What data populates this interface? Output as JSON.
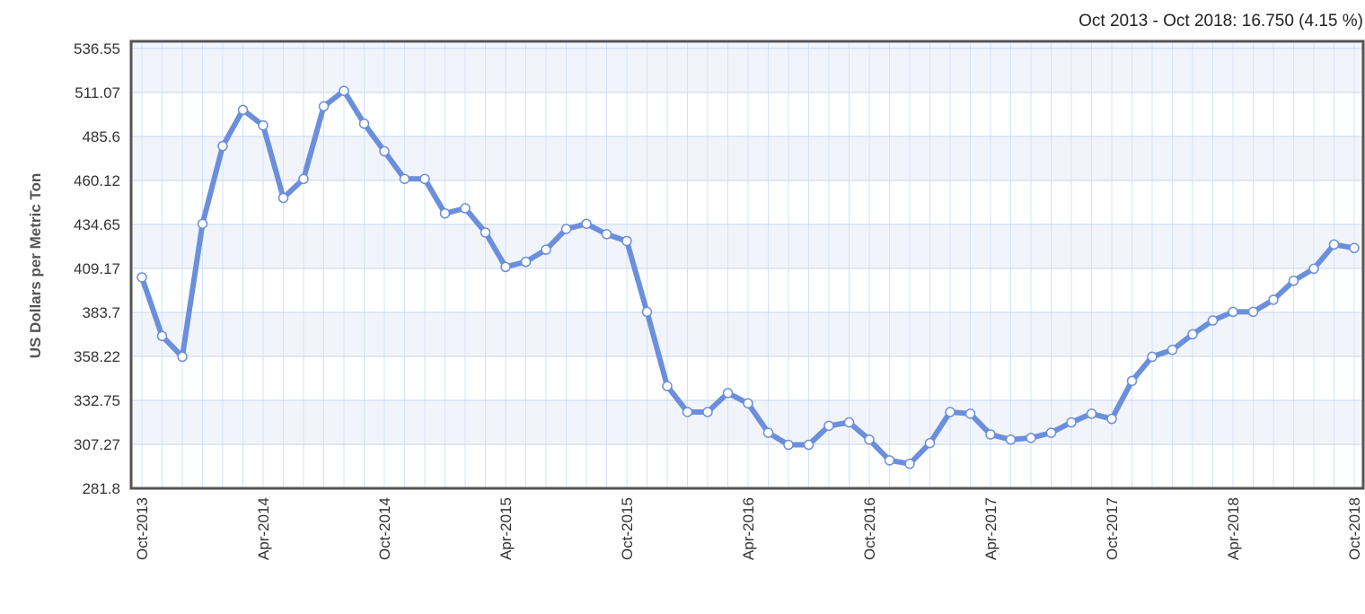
{
  "summary": "Oct 2013 - Oct 2018: 16.750 (4.15 %)",
  "chart_data": {
    "type": "line",
    "title": "",
    "xlabel": "",
    "ylabel": "US Dollars per Metric Ton",
    "ylim": [
      281.8,
      536.55
    ],
    "yticks": [
      "536.55",
      "511.07",
      "485.6",
      "460.12",
      "434.65",
      "409.17",
      "383.7",
      "358.22",
      "332.75",
      "307.27",
      "281.8"
    ],
    "xtick_labels": [
      "Oct-2013",
      "Apr-2014",
      "Oct-2014",
      "Apr-2015",
      "Oct-2015",
      "Apr-2016",
      "Oct-2016",
      "Apr-2017",
      "Oct-2017",
      "Apr-2018",
      "Oct-2018"
    ],
    "grid": true,
    "legend": "none",
    "line_color": "#6b8fdc",
    "x": [
      "Oct-2013",
      "Nov-2013",
      "Dec-2013",
      "Jan-2014",
      "Feb-2014",
      "Mar-2014",
      "Apr-2014",
      "May-2014",
      "Jun-2014",
      "Jul-2014",
      "Aug-2014",
      "Sep-2014",
      "Oct-2014",
      "Nov-2014",
      "Dec-2014",
      "Jan-2015",
      "Feb-2015",
      "Mar-2015",
      "Apr-2015",
      "May-2015",
      "Jun-2015",
      "Jul-2015",
      "Aug-2015",
      "Sep-2015",
      "Oct-2015",
      "Nov-2015",
      "Dec-2015",
      "Jan-2016",
      "Feb-2016",
      "Mar-2016",
      "Apr-2016",
      "May-2016",
      "Jun-2016",
      "Jul-2016",
      "Aug-2016",
      "Sep-2016",
      "Oct-2016",
      "Nov-2016",
      "Dec-2016",
      "Jan-2017",
      "Feb-2017",
      "Mar-2017",
      "Apr-2017",
      "May-2017",
      "Jun-2017",
      "Jul-2017",
      "Aug-2017",
      "Sep-2017",
      "Oct-2017",
      "Nov-2017",
      "Dec-2017",
      "Jan-2018",
      "Feb-2018",
      "Mar-2018",
      "Apr-2018",
      "May-2018",
      "Jun-2018",
      "Jul-2018",
      "Aug-2018",
      "Sep-2018",
      "Oct-2018"
    ],
    "series": [
      {
        "values": [
          404.0,
          370.0,
          358.0,
          435.0,
          480.0,
          501.0,
          492.0,
          450.0,
          461.0,
          503.0,
          512.0,
          493.0,
          477.0,
          461.0,
          461.0,
          441.0,
          444.0,
          430.0,
          410.0,
          413.0,
          420.0,
          432.0,
          435.0,
          429.0,
          425.0,
          384.0,
          341.0,
          326.0,
          326.0,
          337.0,
          331.0,
          314.0,
          307.0,
          307.0,
          318.0,
          320.0,
          310.0,
          298.0,
          296.0,
          308.0,
          326.0,
          325.0,
          313.0,
          310.0,
          311.0,
          314.0,
          320.0,
          325.0,
          322.0,
          344.0,
          358.0,
          362.0,
          371.0,
          379.0,
          384.0,
          384.0,
          391.0,
          402.0,
          409.0,
          423.0,
          421.0
        ]
      }
    ]
  }
}
